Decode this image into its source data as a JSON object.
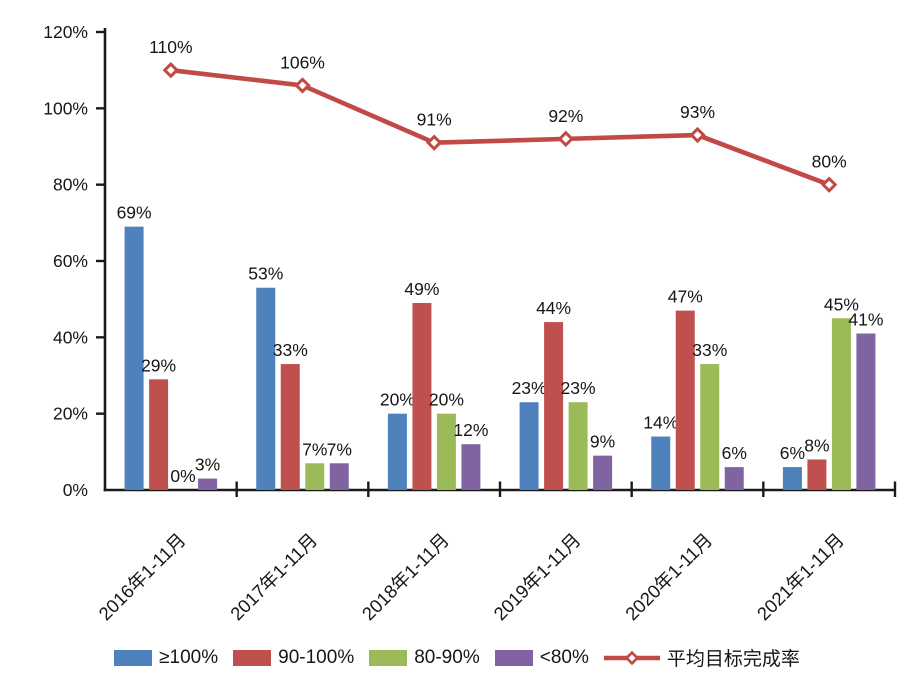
{
  "chart_data": {
    "type": "bar+line",
    "title": "",
    "categories": [
      "2016年1-11月",
      "2017年1-11月",
      "2018年1-11月",
      "2019年1-11月",
      "2020年1-11月",
      "2021年1-11月"
    ],
    "bar_series": [
      {
        "name": "≥100%",
        "color": "#4f81bd",
        "values": [
          69,
          53,
          20,
          23,
          14,
          6
        ]
      },
      {
        "name": "90-100%",
        "color": "#c0504d",
        "values": [
          29,
          33,
          49,
          44,
          47,
          8
        ]
      },
      {
        "name": "80-90%",
        "color": "#9bbb59",
        "values": [
          0,
          7,
          20,
          23,
          33,
          45
        ]
      },
      {
        "name": "<80%",
        "color": "#8064a2",
        "values": [
          3,
          7,
          12,
          9,
          6,
          41
        ]
      }
    ],
    "line_series": {
      "name": "平均目标完成率",
      "color": "#c14a47",
      "marker": "open-diamond",
      "values": [
        110,
        106,
        91,
        92,
        93,
        80
      ]
    },
    "bar_labels": [
      [
        "69%",
        "53%",
        "20%",
        "23%",
        "14%",
        "6%"
      ],
      [
        "29%",
        "33%",
        "49%",
        "44%",
        "47%",
        "8%"
      ],
      [
        "0%",
        "7%",
        "20%",
        "23%",
        "33%",
        "45%"
      ],
      [
        "3%",
        "7%",
        "12%",
        "9%",
        "6%",
        "41%"
      ]
    ],
    "line_labels": [
      "110%",
      "106%",
      "91%",
      "92%",
      "93%",
      "80%"
    ],
    "yticks": [
      "0%",
      "20%",
      "40%",
      "60%",
      "80%",
      "100%",
      "120%"
    ],
    "ylim": [
      0,
      120
    ],
    "value_suffix": "%",
    "grid": false,
    "legend_position": "bottom",
    "axis_color": "#1a1a1a",
    "text_color": "#161616",
    "background": "#ffffff"
  }
}
